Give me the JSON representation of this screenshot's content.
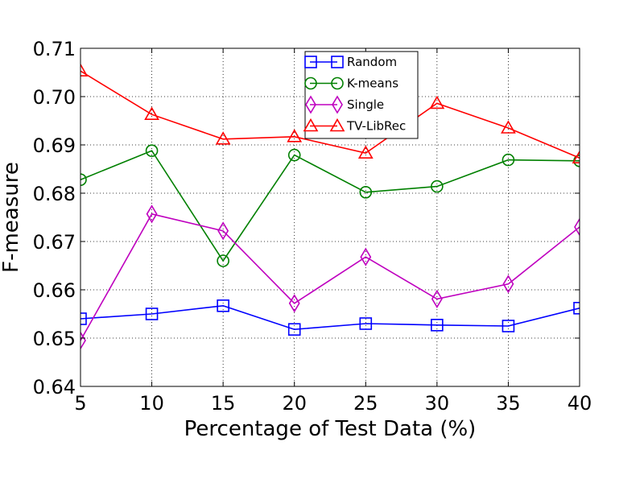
{
  "chart_data": {
    "type": "line",
    "xlabel": "Percentage of Test Data (%)",
    "ylabel": "F-measure",
    "x": [
      5,
      10,
      15,
      20,
      25,
      30,
      35,
      40
    ],
    "xlim": [
      5,
      40
    ],
    "ylim": [
      0.64,
      0.71
    ],
    "xticks": [
      "5",
      "10",
      "15",
      "20",
      "25",
      "30",
      "35",
      "40"
    ],
    "yticks": [
      "0.64",
      "0.65",
      "0.66",
      "0.67",
      "0.68",
      "0.69",
      "0.70",
      "0.71"
    ],
    "grid": true,
    "legend_position": "top-center",
    "series": [
      {
        "name": "Random",
        "color": "#0000ff",
        "marker": "square",
        "values": [
          0.654,
          0.655,
          0.6567,
          0.6518,
          0.653,
          0.6527,
          0.6525,
          0.6562
        ]
      },
      {
        "name": "K-means",
        "color": "#008000",
        "marker": "circle",
        "values": [
          0.6828,
          0.6888,
          0.666,
          0.6879,
          0.6802,
          0.6814,
          0.6869,
          0.6867
        ]
      },
      {
        "name": "Single",
        "color": "#bf00bf",
        "marker": "diamond",
        "values": [
          0.6495,
          0.6757,
          0.6722,
          0.6572,
          0.6668,
          0.6581,
          0.6612,
          0.673
        ]
      },
      {
        "name": "TV-LibRec",
        "color": "#ff0000",
        "marker": "triangle",
        "values": [
          0.7053,
          0.6963,
          0.6912,
          0.6917,
          0.6883,
          0.6986,
          0.6935,
          0.6873
        ]
      }
    ]
  }
}
